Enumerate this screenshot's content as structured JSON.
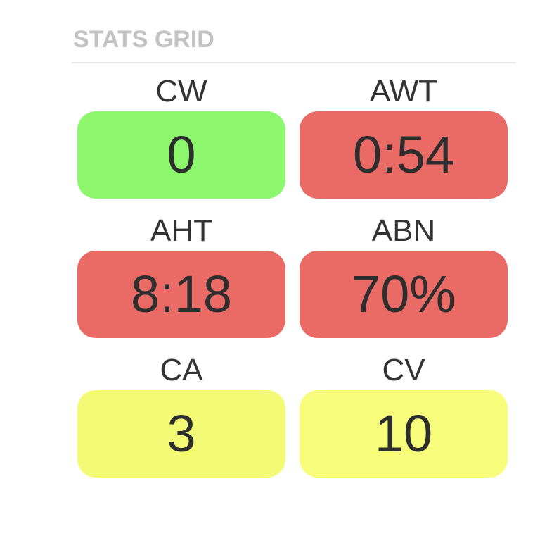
{
  "panel": {
    "title": "STATS GRID"
  },
  "colors": {
    "good": "#8df76e",
    "bad": "#ea6b66",
    "warn": "#f2fa76",
    "warn_alt": "#f7fd7a"
  },
  "stats": [
    {
      "label": "CW",
      "value": "0",
      "status": "good"
    },
    {
      "label": "AWT",
      "value": "0:54",
      "status": "bad"
    },
    {
      "label": "AHT",
      "value": "8:18",
      "status": "bad"
    },
    {
      "label": "ABN",
      "value": "70%",
      "status": "bad"
    },
    {
      "label": "CA",
      "value": "3",
      "status": "warn"
    },
    {
      "label": "CV",
      "value": "10",
      "status": "warn_alt"
    }
  ]
}
